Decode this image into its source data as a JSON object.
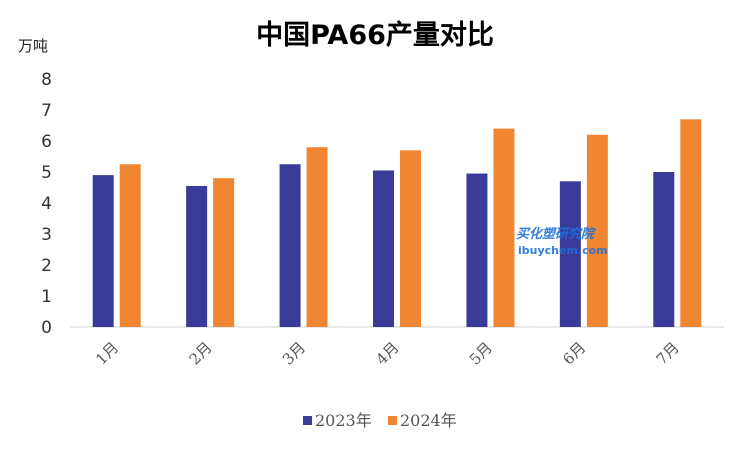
{
  "chart_data": {
    "type": "bar",
    "title": "中国PA66产量对比",
    "ylabel": "万吨",
    "xlabel": "",
    "categories": [
      "1月",
      "2月",
      "3月",
      "4月",
      "5月",
      "6月",
      "7月"
    ],
    "series": [
      {
        "name": "2023年",
        "color": "#3a3a98",
        "values": [
          4.9,
          4.55,
          5.25,
          5.05,
          4.95,
          4.7,
          5.0
        ]
      },
      {
        "name": "2024年",
        "color": "#f08632",
        "values": [
          5.25,
          4.8,
          5.8,
          5.7,
          6.4,
          6.2,
          6.7
        ]
      }
    ],
    "ylim": [
      0,
      8
    ],
    "yticks": [
      "0",
      "1",
      "2",
      "3",
      "4",
      "5",
      "6",
      "7",
      "8"
    ],
    "grid": false,
    "legend_position": "bottom"
  },
  "watermark": {
    "cn": "买化塑研究院",
    "en": "ibuychem.com"
  }
}
